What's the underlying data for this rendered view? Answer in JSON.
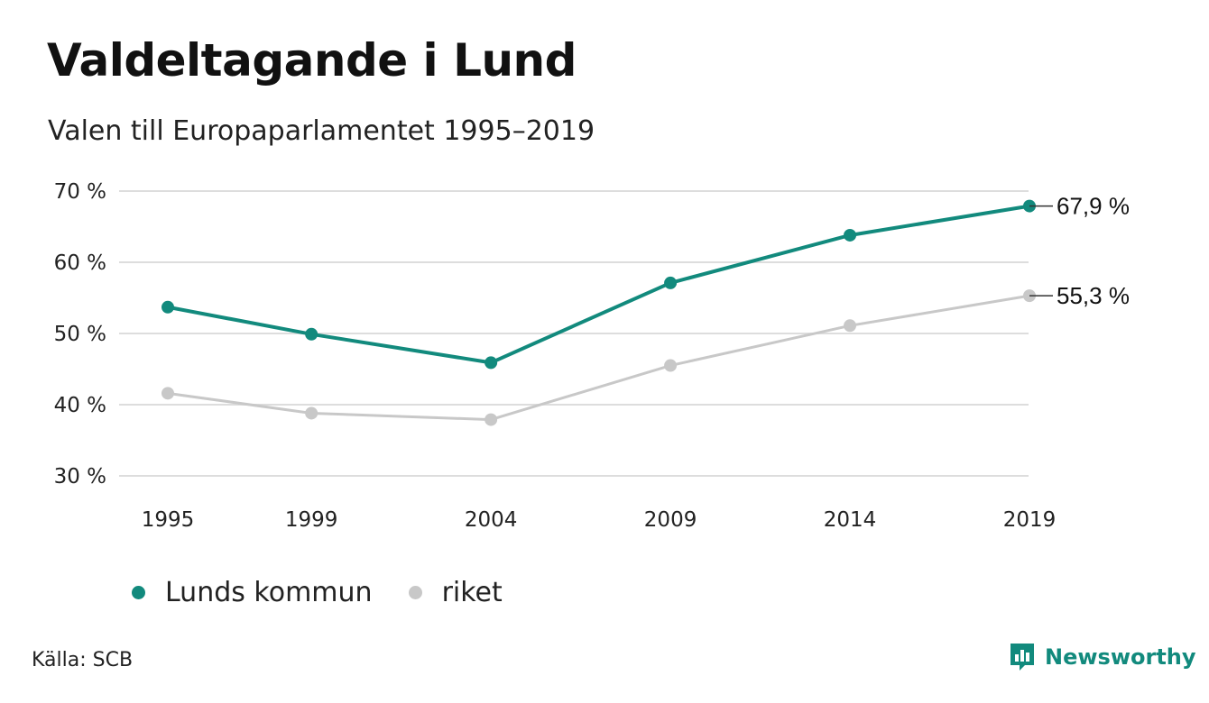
{
  "colors": {
    "accent": "#128a7d",
    "secondary": "#c8c8c8",
    "grid": "#dddddd",
    "text": "#222222"
  },
  "chart_data": {
    "type": "line",
    "title": "Valdeltagande i Lund",
    "subtitle": "Valen till Europaparlamentet 1995–2019",
    "x": [
      1995,
      1999,
      2004,
      2009,
      2014,
      2019
    ],
    "y_ticks": [
      "30 %",
      "40 %",
      "50 %",
      "60 %",
      "70 %"
    ],
    "ylim": [
      30,
      70
    ],
    "grid": true,
    "legend_position": "bottom-left",
    "series": [
      {
        "name": "Lunds kommun",
        "color": "#128a7d",
        "values": [
          53.7,
          49.9,
          45.9,
          57.1,
          63.8,
          67.9
        ],
        "end_label": "67,9 %"
      },
      {
        "name": "riket",
        "color": "#c8c8c8",
        "values": [
          41.6,
          38.8,
          37.9,
          45.5,
          51.1,
          55.3
        ],
        "end_label": "55,3 %"
      }
    ]
  },
  "footer": {
    "source": "Källa: SCB",
    "brand": "Newsworthy"
  },
  "icons": {
    "brand_logo": "newsworthy-logo-icon"
  }
}
